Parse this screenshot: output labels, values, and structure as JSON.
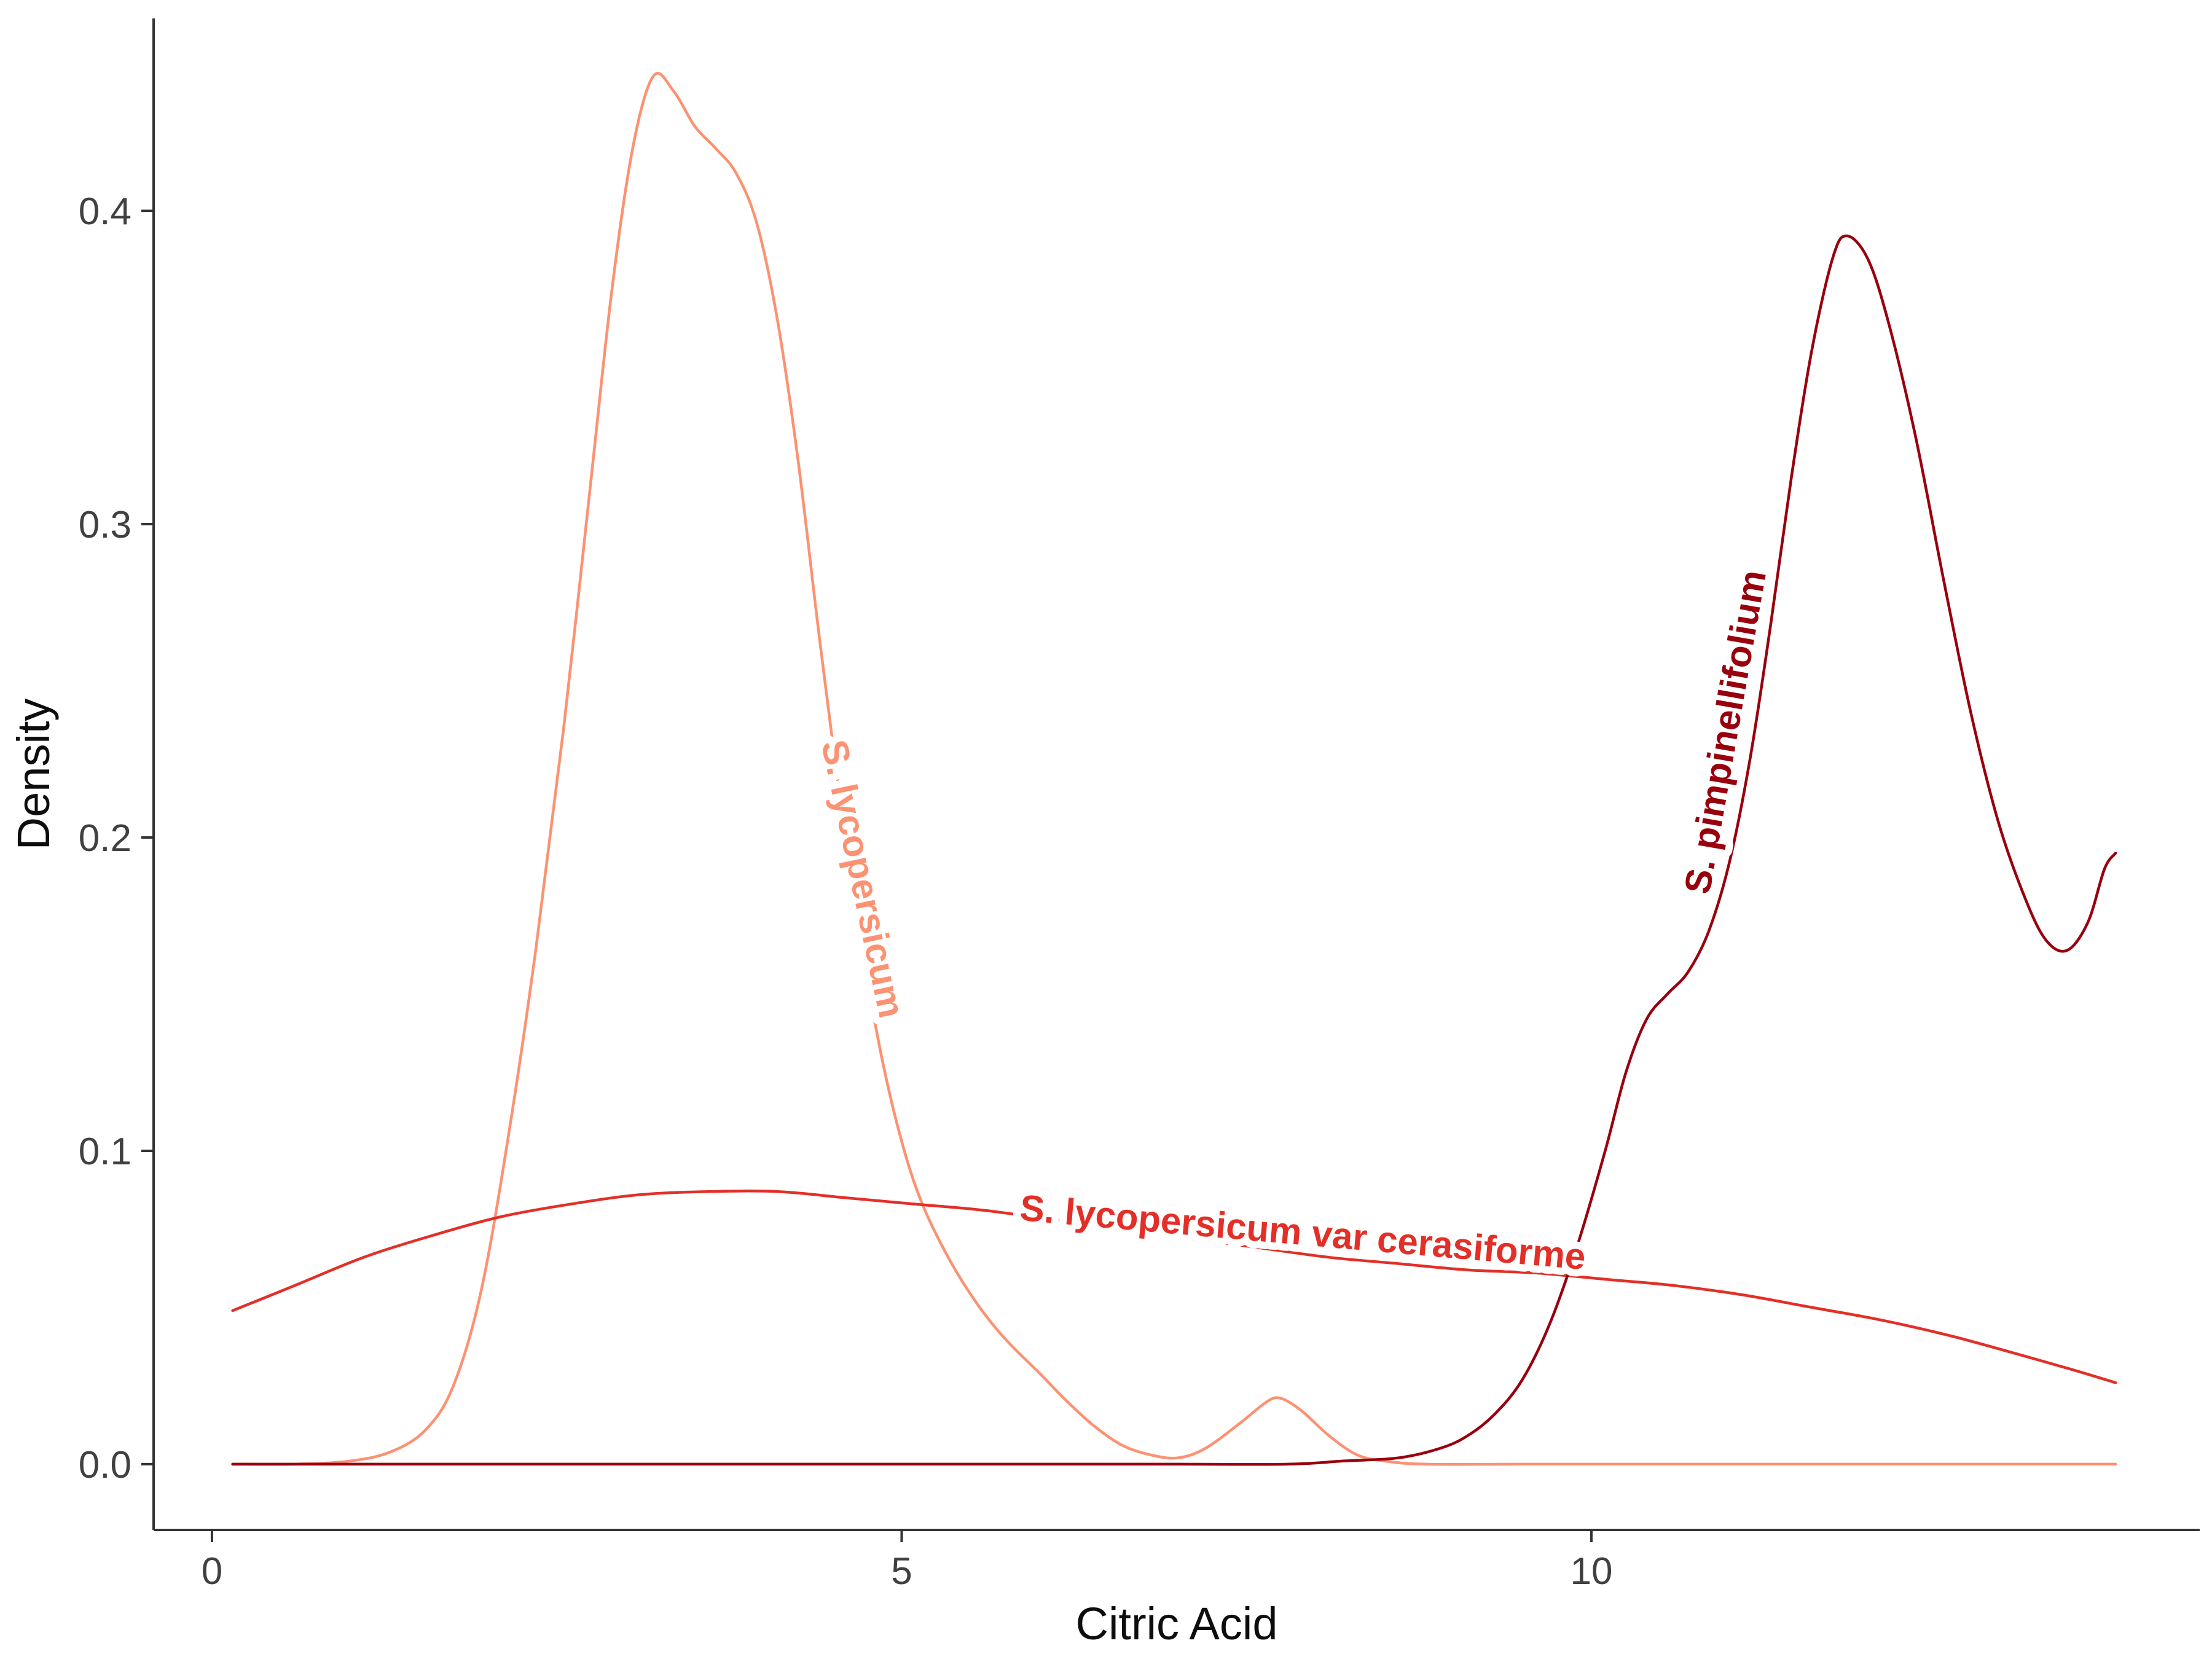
{
  "figure": {
    "background": "#FFFFFF",
    "axis_color": "#333333",
    "tick_label_color": "#404040",
    "title_color": "#0d0d0d"
  },
  "chart_data": {
    "type": "line",
    "subtype": "density",
    "title": "",
    "xlabel": "Citric Acid",
    "ylabel": "Density",
    "grid": false,
    "legend": "none (direct labels on curves)",
    "xlim": [
      -0.423,
      14.41
    ],
    "ylim": [
      -0.021,
      0.4614
    ],
    "x_ticks": [
      {
        "value": 0,
        "label": "0"
      },
      {
        "value": 5,
        "label": "5"
      },
      {
        "value": 10,
        "label": "10"
      }
    ],
    "y_ticks": [
      {
        "value": 0.0,
        "label": "0.0"
      },
      {
        "value": 0.1,
        "label": "0.1"
      },
      {
        "value": 0.2,
        "label": "0.2"
      },
      {
        "value": 0.3,
        "label": "0.3"
      },
      {
        "value": 0.4,
        "label": "0.4"
      }
    ],
    "series": [
      {
        "name": "S. lycopersicum",
        "color": "#FC9272",
        "label": {
          "text": "S. lycopersicum",
          "x": 4.63,
          "y": 0.186,
          "angle": 78
        },
        "points": [
          [
            0.15,
            0
          ],
          [
            0.6,
            0
          ],
          [
            1.0,
            0.001
          ],
          [
            1.3,
            0.004
          ],
          [
            1.55,
            0.011
          ],
          [
            1.75,
            0.025
          ],
          [
            1.95,
            0.055
          ],
          [
            2.15,
            0.105
          ],
          [
            2.35,
            0.165
          ],
          [
            2.55,
            0.235
          ],
          [
            2.75,
            0.315
          ],
          [
            2.9,
            0.375
          ],
          [
            3.05,
            0.42
          ],
          [
            3.2,
            0.443
          ],
          [
            3.35,
            0.438
          ],
          [
            3.5,
            0.427
          ],
          [
            3.65,
            0.42
          ],
          [
            3.8,
            0.412
          ],
          [
            3.95,
            0.396
          ],
          [
            4.1,
            0.365
          ],
          [
            4.25,
            0.32
          ],
          [
            4.4,
            0.265
          ],
          [
            4.55,
            0.213
          ],
          [
            4.7,
            0.168
          ],
          [
            4.85,
            0.131
          ],
          [
            5.0,
            0.103
          ],
          [
            5.15,
            0.083
          ],
          [
            5.35,
            0.065
          ],
          [
            5.55,
            0.051
          ],
          [
            5.75,
            0.04
          ],
          [
            6.0,
            0.029
          ],
          [
            6.2,
            0.02
          ],
          [
            6.4,
            0.012
          ],
          [
            6.6,
            0.006
          ],
          [
            6.8,
            0.003
          ],
          [
            7.0,
            0.002
          ],
          [
            7.2,
            0.005
          ],
          [
            7.45,
            0.013
          ],
          [
            7.65,
            0.02
          ],
          [
            7.75,
            0.021
          ],
          [
            7.9,
            0.017
          ],
          [
            8.1,
            0.009
          ],
          [
            8.3,
            0.003
          ],
          [
            8.5,
            0.001
          ],
          [
            8.8,
            0
          ],
          [
            9.5,
            0
          ],
          [
            10.5,
            0
          ],
          [
            11.5,
            0
          ],
          [
            12.5,
            0
          ],
          [
            13.4,
            0
          ],
          [
            13.8,
            0
          ]
        ]
      },
      {
        "name": "S. lycopersicum var cerasiforme",
        "color": "#E32F27",
        "label": {
          "text": "S. lycopersicum var cerasiforme",
          "x": 7.9,
          "y": 0.07,
          "angle": 5
        },
        "points": [
          [
            0.15,
            0.049
          ],
          [
            0.6,
            0.057
          ],
          [
            1.1,
            0.066
          ],
          [
            1.6,
            0.073
          ],
          [
            2.1,
            0.079
          ],
          [
            2.6,
            0.083
          ],
          [
            3.1,
            0.086
          ],
          [
            3.6,
            0.087
          ],
          [
            4.1,
            0.087
          ],
          [
            4.6,
            0.085
          ],
          [
            5.1,
            0.083
          ],
          [
            5.6,
            0.081
          ],
          [
            6.1,
            0.078
          ],
          [
            6.6,
            0.075
          ],
          [
            7.1,
            0.072
          ],
          [
            7.6,
            0.069
          ],
          [
            8.1,
            0.066
          ],
          [
            8.6,
            0.064
          ],
          [
            9.1,
            0.062
          ],
          [
            9.6,
            0.061
          ],
          [
            10.1,
            0.059
          ],
          [
            10.6,
            0.057
          ],
          [
            11.1,
            0.054
          ],
          [
            11.6,
            0.05
          ],
          [
            12.1,
            0.046
          ],
          [
            12.6,
            0.041
          ],
          [
            13.1,
            0.035
          ],
          [
            13.5,
            0.03
          ],
          [
            13.8,
            0.026
          ]
        ]
      },
      {
        "name": "S. pimpinellifolium",
        "color": "#99000D",
        "label": {
          "text": "S. pimpinellifolium",
          "x": 11.06,
          "y": 0.233,
          "angle": -80
        },
        "points": [
          [
            0.15,
            0
          ],
          [
            1.0,
            0
          ],
          [
            2.0,
            0
          ],
          [
            3.0,
            0
          ],
          [
            4.0,
            0
          ],
          [
            5.0,
            0
          ],
          [
            6.0,
            0
          ],
          [
            7.0,
            0
          ],
          [
            7.8,
            0
          ],
          [
            8.2,
            0.001
          ],
          [
            8.6,
            0.002
          ],
          [
            8.9,
            0.005
          ],
          [
            9.1,
            0.009
          ],
          [
            9.3,
            0.016
          ],
          [
            9.5,
            0.027
          ],
          [
            9.7,
            0.045
          ],
          [
            9.9,
            0.07
          ],
          [
            10.1,
            0.1
          ],
          [
            10.25,
            0.125
          ],
          [
            10.4,
            0.142
          ],
          [
            10.55,
            0.15
          ],
          [
            10.7,
            0.157
          ],
          [
            10.85,
            0.17
          ],
          [
            11.0,
            0.192
          ],
          [
            11.15,
            0.225
          ],
          [
            11.3,
            0.268
          ],
          [
            11.45,
            0.315
          ],
          [
            11.6,
            0.356
          ],
          [
            11.75,
            0.385
          ],
          [
            11.85,
            0.392
          ],
          [
            12.0,
            0.385
          ],
          [
            12.15,
            0.365
          ],
          [
            12.35,
            0.328
          ],
          [
            12.55,
            0.283
          ],
          [
            12.75,
            0.24
          ],
          [
            12.95,
            0.205
          ],
          [
            13.15,
            0.18
          ],
          [
            13.3,
            0.167
          ],
          [
            13.45,
            0.164
          ],
          [
            13.6,
            0.173
          ],
          [
            13.72,
            0.19
          ],
          [
            13.8,
            0.195
          ]
        ]
      }
    ]
  }
}
